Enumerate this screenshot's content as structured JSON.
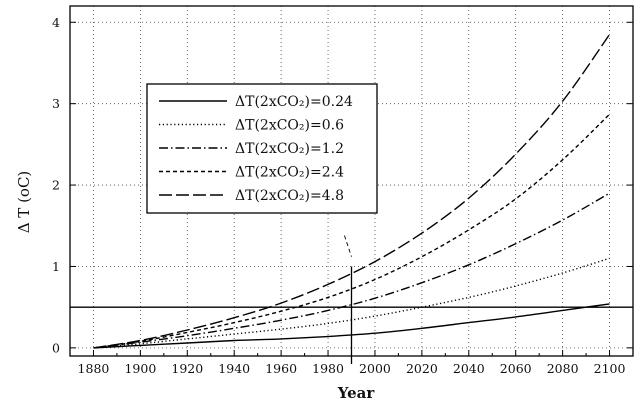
{
  "chart_data": {
    "type": "line",
    "title": "",
    "xlabel": "Year",
    "ylabel": "Δ T (oC)",
    "xlim": [
      1870,
      2110
    ],
    "ylim": [
      -0.1,
      4.2
    ],
    "x_ticks": [
      1880,
      1900,
      1920,
      1940,
      1960,
      1980,
      2000,
      2020,
      2040,
      2060,
      2080,
      2100
    ],
    "y_ticks": [
      0,
      1,
      2,
      3,
      4
    ],
    "grid": true,
    "legend_position": "upper-left",
    "x": [
      1880,
      1900,
      1920,
      1940,
      1960,
      1980,
      2000,
      2020,
      2040,
      2060,
      2080,
      2100
    ],
    "series": [
      {
        "name": "ΔT(2xCO₂)=0.24",
        "dash": "solid",
        "values": [
          0.0,
          0.03,
          0.06,
          0.09,
          0.11,
          0.14,
          0.18,
          0.24,
          0.31,
          0.38,
          0.46,
          0.54
        ]
      },
      {
        "name": "ΔT(2xCO₂)=0.6",
        "dash": "dotted",
        "values": [
          0.0,
          0.05,
          0.11,
          0.17,
          0.23,
          0.3,
          0.39,
          0.5,
          0.62,
          0.76,
          0.92,
          1.1
        ]
      },
      {
        "name": "ΔT(2xCO₂)=1.2",
        "dash": "dashdot",
        "values": [
          0.0,
          0.07,
          0.15,
          0.24,
          0.34,
          0.46,
          0.61,
          0.8,
          1.02,
          1.28,
          1.57,
          1.9
        ]
      },
      {
        "name": "ΔT(2xCO₂)=2.4",
        "dash": "shortdash",
        "values": [
          0.0,
          0.08,
          0.19,
          0.31,
          0.45,
          0.62,
          0.84,
          1.12,
          1.45,
          1.83,
          2.31,
          2.87
        ]
      },
      {
        "name": "ΔT(2xCO₂)=4.8",
        "dash": "longdash",
        "values": [
          0.0,
          0.09,
          0.22,
          0.37,
          0.55,
          0.78,
          1.06,
          1.41,
          1.84,
          2.38,
          3.03,
          3.85
        ]
      }
    ],
    "reference_lines": [
      {
        "orientation": "horizontal",
        "value": 0.5
      },
      {
        "orientation": "vertical",
        "value": 1990
      }
    ]
  }
}
